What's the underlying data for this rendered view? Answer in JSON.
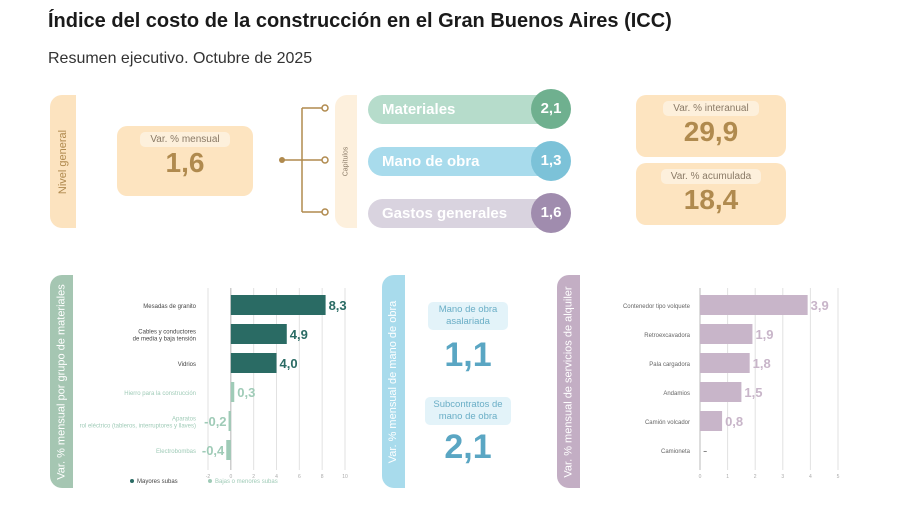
{
  "header": {
    "title": "Índice del costo de la construcción en el Gran Buenos Aires (ICC)",
    "subtitle": "Resumen ejecutivo. Octubre de 2025"
  },
  "nivel_general": {
    "label": "Nivel general",
    "var_label": "Var. % mensual",
    "var_value": "1,6"
  },
  "capitulos": {
    "label": "Capítulos",
    "items": [
      {
        "name": "Materiales",
        "value": "2,1",
        "color": "#6fb08f"
      },
      {
        "name": "Mano de obra",
        "value": "1,3",
        "color": "#7cc2d8"
      },
      {
        "name": "Gastos generales",
        "value": "1,6",
        "color": "#a08cae"
      }
    ]
  },
  "summary": [
    {
      "label": "Var. % interanual",
      "value": "29,9"
    },
    {
      "label": "Var. % acumulada",
      "value": "18,4"
    }
  ],
  "mano_obra": {
    "label": "Var. % mensual de mano de obra",
    "items": [
      {
        "label": "Mano de obra asalariada",
        "value": "1,1"
      },
      {
        "label": "Subcontratos de mano de obra",
        "value": "2,1"
      }
    ]
  },
  "chart_data": [
    {
      "type": "bar",
      "title": "Var. % mensual por grupo de materiales",
      "categories": [
        "Mesadas de granito",
        "Cables y conductores de media y baja tensión",
        "Vidrios",
        "Hierro para la construcción",
        "Aparatos de control eléctrico (tableros, interruptores y llaves)",
        "Electrobombas"
      ],
      "values": [
        8.3,
        4.9,
        4.0,
        0.3,
        -0.2,
        -0.4
      ],
      "labels": [
        "8,3",
        "4,9",
        "4,0",
        "0,3",
        "-0,2",
        "-0,4"
      ],
      "groups": [
        "Mayores subas",
        "Mayores subas",
        "Mayores subas",
        "Bajas o menores subas",
        "Bajas o menores subas",
        "Bajas o menores subas"
      ],
      "xlim": [
        -2,
        10
      ],
      "ticks": [
        -2,
        0,
        2,
        4,
        6,
        8,
        10
      ],
      "legend": [
        "Mayores subas",
        "Bajas o menores subas"
      ],
      "colors": {
        "Mayores subas": "#2a6b64",
        "Bajas o menores subas": "#9fcbb7"
      }
    },
    {
      "type": "bar",
      "title": "Var. % mensual de servicios de alquiler",
      "categories": [
        "Contenedor tipo volquete",
        "Retroexcavadora",
        "Pala cargadora",
        "Andamios",
        "Camión volcador",
        "Camioneta"
      ],
      "values": [
        3.9,
        1.9,
        1.8,
        1.5,
        0.8,
        null
      ],
      "labels": [
        "3,9",
        "1,9",
        "1,8",
        "1,5",
        "0,8",
        "-"
      ],
      "xlim": [
        0,
        5
      ],
      "ticks": [
        0,
        1,
        2,
        3,
        4,
        5
      ],
      "color": "#c8b5c9"
    }
  ]
}
